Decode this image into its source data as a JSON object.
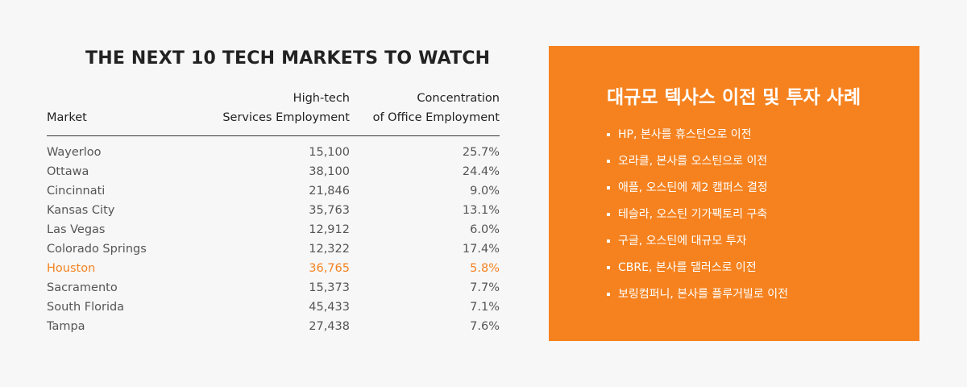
{
  "title": "THE NEXT 10 TECH MARKETS TO WATCH",
  "table": {
    "headers": {
      "market": "Market",
      "employment_line1": "High-tech",
      "employment_line2": "Services Employment",
      "concentration_line1": "Concentration",
      "concentration_line2": "of Office Employment"
    },
    "rows": [
      {
        "market": "Wayerloo",
        "employment": "15,100",
        "concentration": "25.7%"
      },
      {
        "market": "Ottawa",
        "employment": "38,100",
        "concentration": "24.4%"
      },
      {
        "market": "Cincinnati",
        "employment": "21,846",
        "concentration": "9.0%"
      },
      {
        "market": "Kansas City",
        "employment": "35,763",
        "concentration": "13.1%"
      },
      {
        "market": "Las Vegas",
        "employment": "12,912",
        "concentration": "6.0%"
      },
      {
        "market": "Colorado Springs",
        "employment": "12,322",
        "concentration": "17.4%"
      },
      {
        "market": "Houston",
        "employment": "36,765",
        "concentration": "5.8%"
      },
      {
        "market": "Sacramento",
        "employment": "15,373",
        "concentration": "7.7%"
      },
      {
        "market": "South Florida",
        "employment": "45,433",
        "concentration": "7.1%"
      },
      {
        "market": "Tampa",
        "employment": "27,438",
        "concentration": "7.6%"
      }
    ],
    "highlight_color": "#f5821f"
  },
  "panel": {
    "title": "대규모 텍사스 이전 및 투자 사례",
    "background": "#f5821f",
    "items": [
      "HP, 본사를 휴스턴으로 이전",
      "오라클, 본사를 오스틴으로 이전",
      "애플, 오스틴에 제2 캠퍼스 결정",
      "테슬라, 오스틴 기가팩토리 구축",
      "구글, 오스틴에 대규모 투자",
      "CBRE, 본사를 댈러스로 이전",
      "보링컴퍼니, 본사를 플루거빌로 이전"
    ]
  }
}
